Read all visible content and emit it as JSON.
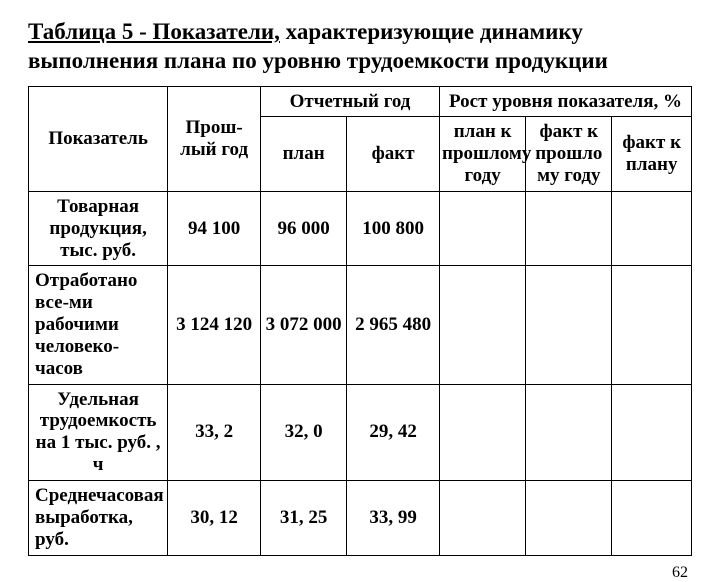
{
  "title_prefix": "Таблица 5 - Показатели,",
  "title_rest": " характеризующие динамику выполнения плана по уровню трудоемкости продукции",
  "headers": {
    "indicator": "Показатель",
    "last_year": "Прош-лый год",
    "report_year": "Отчетный год",
    "plan": "план",
    "fact": "факт",
    "growth": "Рост уровня показателя, %",
    "plan_to_prev": "план к прошлому году",
    "fact_to_prev": "факт к прошло му году",
    "fact_to_plan": "факт к плану"
  },
  "rows": [
    {
      "label": "Товарная продукция, тыс. руб.",
      "prev": "94 100",
      "plan": "96 000",
      "fact": "100 800",
      "g1": "",
      "g2": "",
      "g3": ""
    },
    {
      "label": "Отработано все-ми рабочими человеко-часов",
      "prev": "3 124 120",
      "plan": "3 072 000",
      "fact": "2 965 480",
      "g1": "",
      "g2": "",
      "g3": ""
    },
    {
      "label": "Удельная трудоемкость на 1 тыс. руб. , ч",
      "prev": "33, 2",
      "plan": "32, 0",
      "fact": "29, 42",
      "g1": "",
      "g2": "",
      "g3": ""
    },
    {
      "label": "Среднечасовая выработка, руб.",
      "prev": "30, 12",
      "plan": "31, 25",
      "fact": "33, 99",
      "g1": "",
      "g2": "",
      "g3": ""
    }
  ],
  "page_number": "62"
}
